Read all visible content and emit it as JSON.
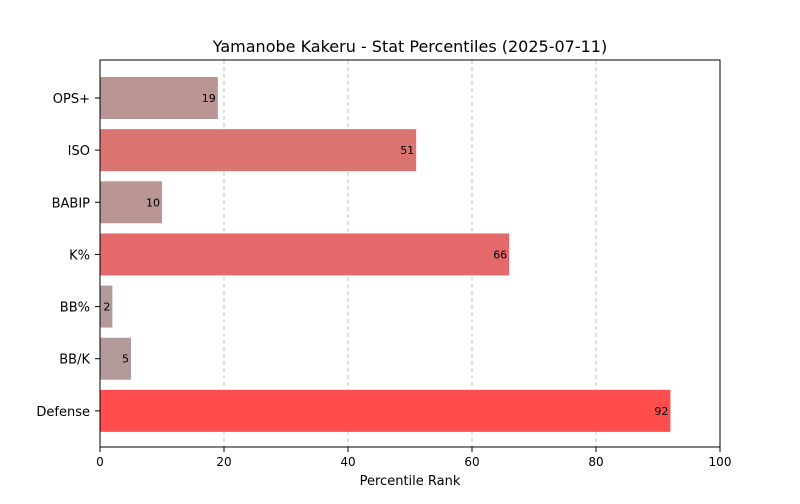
{
  "chart_data": {
    "type": "bar",
    "orientation": "horizontal",
    "title": "Yamanobe Kakeru - Stat Percentiles (2025-07-11)",
    "xlabel": "Percentile Rank",
    "ylabel": "",
    "xlim": [
      0,
      100
    ],
    "xticks": [
      "0",
      "20",
      "40",
      "60",
      "80",
      "100"
    ],
    "grid": "x-axis dashed",
    "categories": [
      "OPS+",
      "ISO",
      "BABIP",
      "K%",
      "BB%",
      "BB/K",
      "Defense"
    ],
    "values": [
      19,
      51,
      10,
      66,
      2,
      5,
      92
    ],
    "bar_colors": [
      "#b99593",
      "#da7471",
      "#b99593",
      "#e3696a",
      "#b29a9a",
      "#b29a9a",
      "#ff4c4c"
    ]
  }
}
